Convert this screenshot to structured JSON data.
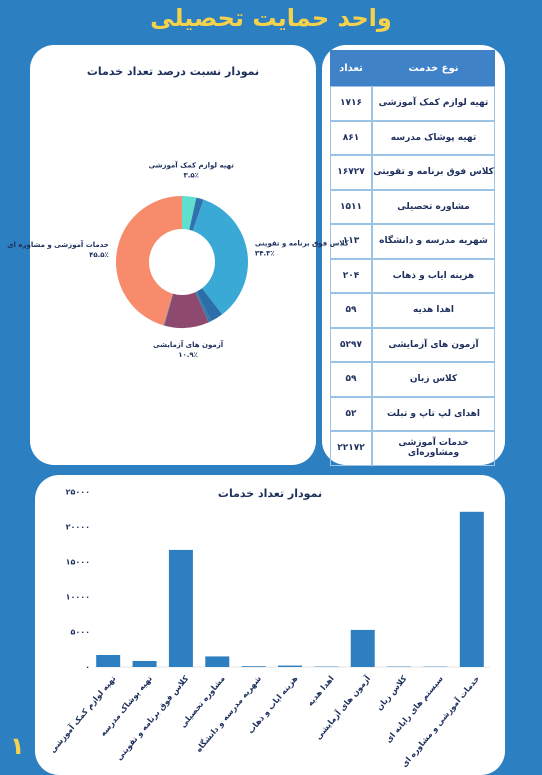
{
  "title": "واحد حمایت تحصیلی",
  "page_number": "۱",
  "table": {
    "header": [
      "نوع خدمت",
      "تعداد"
    ],
    "rows": [
      [
        "تهیه لوازم کمک آموزشی",
        "۱۷۱۶"
      ],
      [
        "تهیه پوشاک مدرسه",
        "۸۶۱"
      ],
      [
        "کلاس فوق برنامه و تقویتی",
        "۱۶۷۲۷"
      ],
      [
        "مشاوره تحصیلی",
        "۱۵۱۱"
      ],
      [
        "شهریه مدرسه و دانشگاه",
        "۱۱۳"
      ],
      [
        "هزینه ایاب و ذهاب",
        "۲۰۴"
      ],
      [
        "اهدا هدیه",
        "۵۹"
      ],
      [
        "آزمون های آزمایشی",
        "۵۲۹۷"
      ],
      [
        "کلاس زبان",
        "۵۹"
      ],
      [
        "اهدای لپ تاپ و تبلت",
        "۵۲"
      ],
      [
        "خدمات آموزشی ومشاوره‌ای",
        "۲۲۱۷۲"
      ]
    ]
  },
  "chart_data": [
    {
      "type": "pie",
      "donut": true,
      "title": "نمودار نسبت درصد تعداد خدمات",
      "categories": [
        "تهیه لوازم کمک آموزشی",
        null,
        "کلاس فوق برنامه و تقویتی",
        null,
        null,
        null,
        null,
        "آزمون های آزمایشی",
        null,
        null,
        "خدمات آموزشی و مشاوره ای"
      ],
      "values": [
        3.5,
        1.8,
        34.3,
        3.1,
        0.2,
        0.4,
        0.1,
        10.9,
        0.1,
        0.1,
        45.5
      ],
      "value_labels": [
        "۳.۵٪",
        null,
        "۳۴.۳٪",
        null,
        null,
        null,
        null,
        "۱۰.۹٪",
        null,
        null,
        "۴۵.۵٪"
      ],
      "colors": [
        "#5fe0cf",
        "#2f72ad",
        "#3aa9d6",
        "#2c6fa8",
        "#2c6fa8",
        "#2c6fa8",
        "#2c6fa8",
        "#8e4a6e",
        "#2c6fa8",
        "#2c6fa8",
        "#f78b6b"
      ]
    },
    {
      "type": "bar",
      "title": "نمودار تعداد خدمات",
      "categories": [
        "تهیه لوازم کمک آموزشی",
        "تهیه پوشاک مدرسه",
        "کلاس فوق برنامه و تقویتی",
        "مشاوره تحصیلی",
        "شهریه مدرسه و دانشگاه",
        "هزینه ایاب و ذهاب",
        "اهدا هدیه",
        "آزمون های آزمایشی",
        "کلاس زبان",
        "سیستم های رایانه ای",
        "خدمات آموزشی و مشاوره ای"
      ],
      "values": [
        1716,
        861,
        16727,
        1511,
        113,
        204,
        59,
        5297,
        59,
        52,
        22172
      ],
      "color": "#2e7fc2",
      "ylim": [
        0,
        25000
      ],
      "yticks": [
        {
          "value": 0,
          "label": "۰"
        },
        {
          "value": 5000,
          "label": "۵۰۰۰"
        },
        {
          "value": 10000,
          "label": "۱۰۰۰۰"
        },
        {
          "value": 15000,
          "label": "۱۵۰۰۰"
        },
        {
          "value": 20000,
          "label": "۲۰۰۰۰"
        },
        {
          "value": 25000,
          "label": "۲۵۰۰۰"
        }
      ],
      "grid": false
    }
  ]
}
